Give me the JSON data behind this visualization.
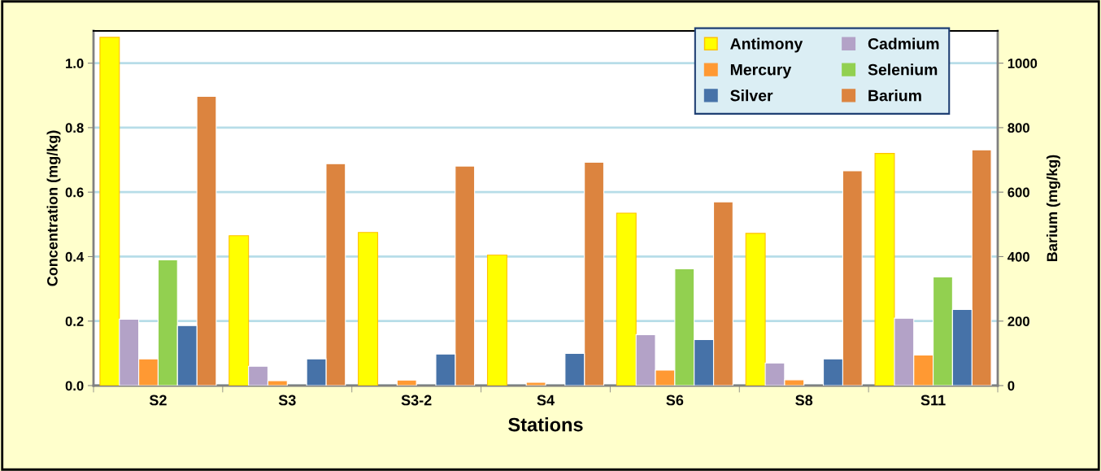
{
  "chart_data": {
    "type": "bar",
    "xlabel": "Stations",
    "ylabel": "Concentration (mg/kg)",
    "y2label": "Barium (mg/kg)",
    "categories": [
      "S2",
      "S3",
      "S3-2",
      "S4",
      "S6",
      "S8",
      "S11"
    ],
    "series": [
      {
        "name": "Antimony",
        "color": "#ffff00",
        "values": [
          1.08,
          0.465,
          0.475,
          0.405,
          0.535,
          0.472,
          0.72
        ]
      },
      {
        "name": "Cadmium",
        "color": "#b3a2c7",
        "values": [
          0.206,
          0.06,
          null,
          null,
          0.158,
          0.07,
          0.209
        ]
      },
      {
        "name": "Mercury",
        "color": "#ff9933",
        "values": [
          0.083,
          0.015,
          0.017,
          0.01,
          0.048,
          0.018,
          0.095
        ]
      },
      {
        "name": "Selenium",
        "color": "#92d050",
        "values": [
          0.39,
          null,
          null,
          null,
          0.362,
          null,
          0.337
        ]
      },
      {
        "name": "Silver",
        "color": "#4672a8",
        "values": [
          0.186,
          0.083,
          0.098,
          0.1,
          0.143,
          0.083,
          0.236
        ]
      },
      {
        "name": "Barium",
        "color": "#dc843f",
        "axis": "y2",
        "values": [
          897,
          688,
          681,
          693,
          570,
          666,
          731
        ]
      }
    ],
    "ylim": [
      0,
      1.1
    ],
    "yticks": [
      {
        "value": 0,
        "label": "0.0"
      },
      {
        "value": 0.2,
        "label": "0.2"
      },
      {
        "value": 0.4,
        "label": "0.4"
      },
      {
        "value": 0.6,
        "label": "0.6"
      },
      {
        "value": 0.8,
        "label": "0.8"
      },
      {
        "value": 1.0,
        "label": "1.0"
      }
    ],
    "y2lim": [
      0,
      1100
    ],
    "y2ticks": [
      0,
      200,
      400,
      600,
      800,
      1000
    ],
    "grid": "y",
    "legend": "top right"
  }
}
